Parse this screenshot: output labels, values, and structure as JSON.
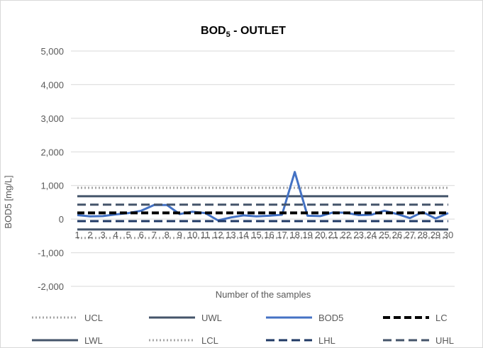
{
  "chart_data": {
    "type": "line",
    "title": "BOD",
    "title_subscript": "5",
    "title_suffix": " - OUTLET",
    "xlabel": "Number of the samples",
    "ylabel": "BOD5 [mg/L]",
    "ylim": [
      -2000,
      5000
    ],
    "yticks": [
      -2000,
      -1000,
      0,
      1000,
      2000,
      3000,
      4000,
      5000
    ],
    "ytick_labels": [
      "-2,000",
      "-1,000",
      "0",
      "1,000",
      "2,000",
      "3,000",
      "4,000",
      "5,000"
    ],
    "grid": true,
    "legend_position": "bottom",
    "x": [
      "1",
      "2",
      "3",
      "4",
      "5",
      "6",
      "7",
      "8",
      "9",
      "10",
      "11",
      "12",
      "13",
      "14",
      "15",
      "16",
      "17",
      "18",
      "19",
      "20",
      "21",
      "22",
      "23",
      "24",
      "25",
      "26",
      "27",
      "28",
      "29",
      "30"
    ],
    "series": [
      {
        "name": "UCL",
        "style": "dotted",
        "color": "#a6a6a6",
        "width": 3,
        "values": [
          930,
          930,
          930,
          930,
          930,
          930,
          930,
          930,
          930,
          930,
          930,
          930,
          930,
          930,
          930,
          930,
          930,
          930,
          930,
          930,
          930,
          930,
          930,
          930,
          930,
          930,
          930,
          930,
          930,
          930
        ]
      },
      {
        "name": "UWL",
        "style": "solid",
        "color": "#44546a",
        "width": 3,
        "values": [
          680,
          680,
          680,
          680,
          680,
          680,
          680,
          680,
          680,
          680,
          680,
          680,
          680,
          680,
          680,
          680,
          680,
          680,
          680,
          680,
          680,
          680,
          680,
          680,
          680,
          680,
          680,
          680,
          680,
          680
        ]
      },
      {
        "name": "BOD5",
        "style": "solid",
        "color": "#4472c4",
        "width": 3,
        "values": [
          120,
          80,
          90,
          140,
          180,
          250,
          420,
          420,
          150,
          220,
          180,
          -40,
          50,
          110,
          80,
          100,
          130,
          1400,
          100,
          90,
          200,
          190,
          120,
          130,
          250,
          150,
          30,
          210,
          20,
          180
        ]
      },
      {
        "name": "LC",
        "style": "dashed-bold",
        "color": "#000000",
        "width": 4,
        "values": [
          185,
          185,
          185,
          185,
          185,
          185,
          185,
          185,
          185,
          185,
          185,
          185,
          185,
          185,
          185,
          185,
          185,
          185,
          185,
          185,
          185,
          185,
          185,
          185,
          185,
          185,
          185,
          185,
          185,
          185
        ]
      },
      {
        "name": "LWL",
        "style": "solid",
        "color": "#44546a",
        "width": 3,
        "values": [
          -310,
          -310,
          -310,
          -310,
          -310,
          -310,
          -310,
          -310,
          -310,
          -310,
          -310,
          -310,
          -310,
          -310,
          -310,
          -310,
          -310,
          -310,
          -310,
          -310,
          -310,
          -310,
          -310,
          -310,
          -310,
          -310,
          -310,
          -310,
          -310,
          -310
        ]
      },
      {
        "name": "LCL",
        "style": "dotted",
        "color": "#a6a6a6",
        "width": 3,
        "values": [
          -560,
          -560,
          -560,
          -560,
          -560,
          -560,
          -560,
          -560,
          -560,
          -560,
          -560,
          -560,
          -560,
          -560,
          -560,
          -560,
          -560,
          -560,
          -560,
          -560,
          -560,
          -560,
          -560,
          -560,
          -560,
          -560,
          -560,
          -560,
          -560,
          -560
        ]
      },
      {
        "name": "LHL",
        "style": "dashed",
        "color": "#1f3864",
        "width": 3,
        "values": [
          -60,
          -60,
          -60,
          -60,
          -60,
          -60,
          -60,
          -60,
          -60,
          -60,
          -60,
          -60,
          -60,
          -60,
          -60,
          -60,
          -60,
          -60,
          -60,
          -60,
          -60,
          -60,
          -60,
          -60,
          -60,
          -60,
          -60,
          -60,
          -60,
          -60
        ]
      },
      {
        "name": "UHL",
        "style": "dashed",
        "color": "#44546a",
        "width": 3,
        "values": [
          430,
          430,
          430,
          430,
          430,
          430,
          430,
          430,
          430,
          430,
          430,
          430,
          430,
          430,
          430,
          430,
          430,
          430,
          430,
          430,
          430,
          430,
          430,
          430,
          430,
          430,
          430,
          430,
          430,
          430
        ]
      }
    ]
  }
}
